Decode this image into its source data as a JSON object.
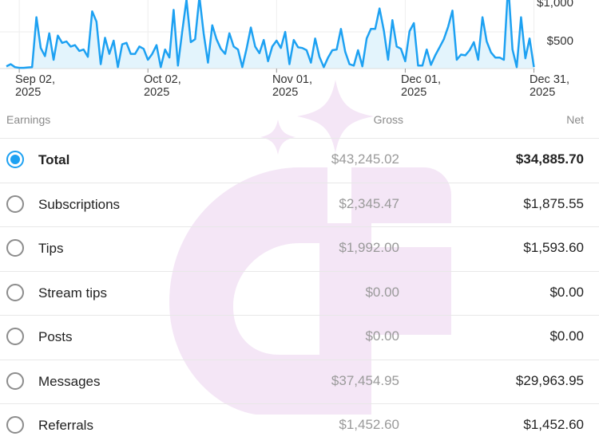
{
  "chart_data": {
    "type": "area",
    "y_tick_labels": [
      "$1,000",
      "$500"
    ],
    "x_tick_labels": [
      {
        "line1": "Sep 02,",
        "line2": "2025"
      },
      {
        "line1": "Oct 02,",
        "line2": "2025"
      },
      {
        "line1": "Nov 01,",
        "line2": "2025"
      },
      {
        "line1": "Dec 01,",
        "line2": "2025"
      },
      {
        "line1": "Dec 31,",
        "line2": "2025"
      }
    ],
    "x_range": [
      "2025-08-30",
      "2026-01-01"
    ],
    "y_range": [
      0,
      1100
    ],
    "start_date": "2025-08-30",
    "series": [
      {
        "values": [
          30,
          60,
          20,
          10,
          10,
          15,
          20,
          700,
          280,
          170,
          480,
          120,
          450,
          350,
          370,
          300,
          320,
          240,
          260,
          160,
          780,
          640,
          60,
          420,
          200,
          380,
          20,
          330,
          350,
          200,
          200,
          300,
          270,
          120,
          200,
          320,
          20,
          260,
          150,
          800,
          40,
          510,
          940,
          360,
          400,
          980,
          480,
          80,
          590,
          400,
          270,
          200,
          480,
          300,
          260,
          20,
          270,
          560,
          300,
          210,
          390,
          100,
          300,
          380,
          280,
          500,
          60,
          390,
          290,
          280,
          250,
          80,
          410,
          160,
          20,
          150,
          250,
          260,
          540,
          230,
          60,
          40,
          250,
          30,
          410,
          540,
          540,
          820,
          520,
          120,
          660,
          300,
          270,
          100,
          510,
          620,
          40,
          40,
          260,
          50,
          180,
          290,
          400,
          570,
          790,
          120,
          190,
          180,
          250,
          360,
          120,
          700,
          370,
          220,
          150,
          150,
          120,
          1150,
          260,
          20,
          700,
          140,
          410,
          20
        ]
      }
    ],
    "colors": {
      "line": "#1da1f2",
      "fill": "#e3f4fc"
    }
  },
  "table": {
    "headers": {
      "earnings": "Earnings",
      "gross": "Gross",
      "net": "Net"
    },
    "rows": [
      {
        "label": "Total",
        "gross": "$43,245.02",
        "net": "$34,885.70",
        "selected": true
      },
      {
        "label": "Subscriptions",
        "gross": "$2,345.47",
        "net": "$1,875.55",
        "selected": false
      },
      {
        "label": "Tips",
        "gross": "$1,992.00",
        "net": "$1,593.60",
        "selected": false
      },
      {
        "label": "Stream tips",
        "gross": "$0.00",
        "net": "$0.00",
        "selected": false
      },
      {
        "label": "Posts",
        "gross": "$0.00",
        "net": "$0.00",
        "selected": false
      },
      {
        "label": "Messages",
        "gross": "$37,454.95",
        "net": "$29,963.95",
        "selected": false
      },
      {
        "label": "Referrals",
        "gross": "$1,452.60",
        "net": "$1,452.60",
        "selected": false
      }
    ]
  }
}
